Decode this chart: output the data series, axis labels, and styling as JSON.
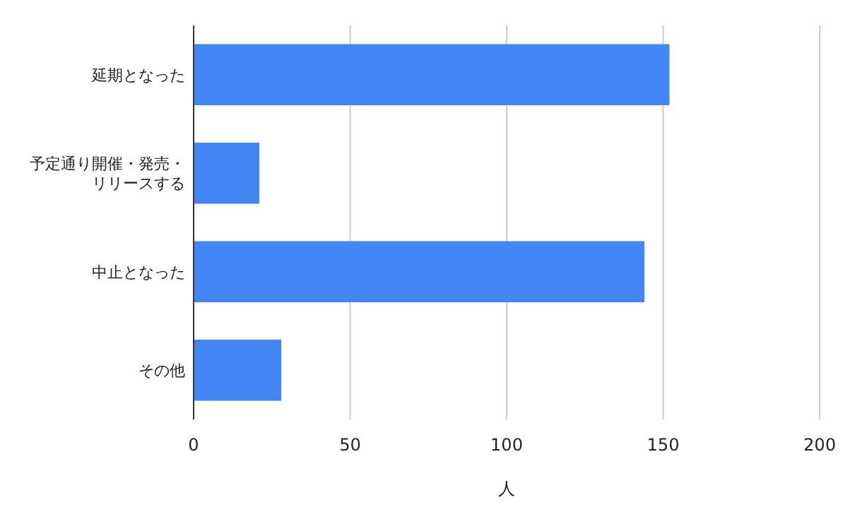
{
  "chart_data": {
    "type": "bar",
    "orientation": "horizontal",
    "xlabel": "人",
    "categories": [
      "延期となった",
      "予定通り開催・発売・リリースする",
      "中止となった",
      "その他"
    ],
    "values": [
      152,
      21,
      144,
      28
    ],
    "color": "#4285f4",
    "xlim": [
      0,
      200
    ],
    "xticks": [
      0,
      50,
      100,
      150,
      200
    ],
    "grid": "x"
  }
}
